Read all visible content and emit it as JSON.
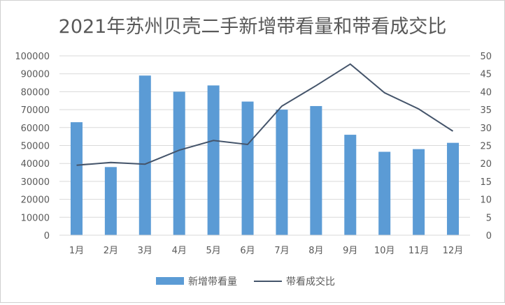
{
  "chart_data": {
    "type": "bar",
    "title": "2021年苏州贝壳二手新增带看量和带看成交比",
    "categories": [
      "1月",
      "2月",
      "3月",
      "4月",
      "5月",
      "6月",
      "7月",
      "8月",
      "9月",
      "10月",
      "11月",
      "12月"
    ],
    "series": [
      {
        "name": "新增带看量",
        "type": "bar",
        "axis": "left",
        "values": [
          63000,
          38000,
          89000,
          80000,
          83500,
          74500,
          70000,
          72000,
          56000,
          46500,
          48000,
          51500
        ]
      },
      {
        "name": "带看成交比",
        "type": "line",
        "axis": "right",
        "values": [
          19.5,
          20.3,
          19.8,
          23.7,
          26.4,
          25.3,
          36,
          41.7,
          47.7,
          39.7,
          35.2,
          29
        ]
      }
    ],
    "y_left": {
      "min": 0,
      "max": 100000,
      "step": 10000,
      "ticks": [
        "0",
        "10000",
        "20000",
        "30000",
        "40000",
        "50000",
        "60000",
        "70000",
        "80000",
        "90000",
        "100000"
      ]
    },
    "y_right": {
      "min": 0,
      "max": 50,
      "step": 5,
      "ticks": [
        "0",
        "5",
        "10",
        "15",
        "20",
        "25",
        "30",
        "35",
        "40",
        "45",
        "50"
      ]
    },
    "grid": true,
    "legend_position": "bottom",
    "colors": {
      "bar": "#5b9bd5",
      "line": "#44546a",
      "grid": "#d9d9d9",
      "text": "#595959"
    }
  }
}
